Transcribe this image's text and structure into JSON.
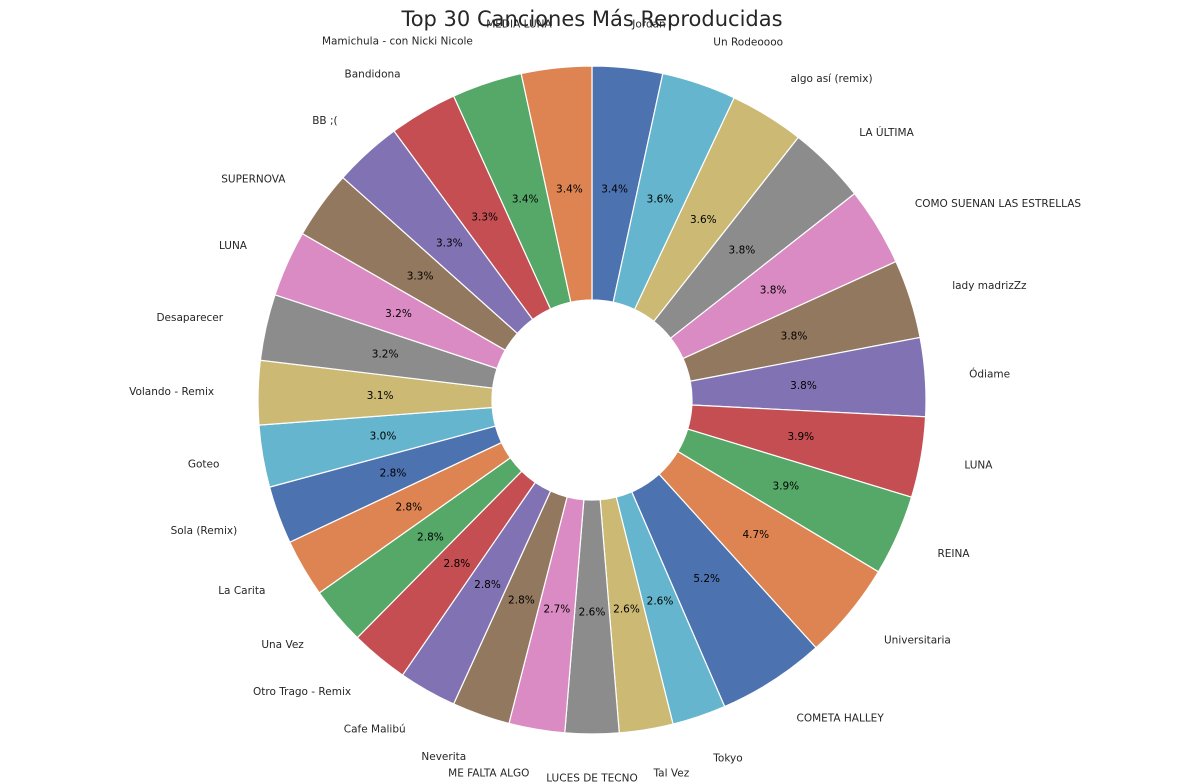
{
  "chart_data": {
    "type": "pie",
    "title": "Top 30 Canciones Más Reproducidas",
    "donut": true,
    "start_angle_deg": 90,
    "direction": "clockwise",
    "slices": [
      {
        "label": "Jordan I",
        "percent": 3.4
      },
      {
        "label": "Un Rodeoooo",
        "percent": 3.6
      },
      {
        "label": "algo así (remix)",
        "percent": 3.6
      },
      {
        "label": "LA ÚLTIMA",
        "percent": 3.8
      },
      {
        "label": "COMO SUENAN LAS ESTRELLAS",
        "percent": 3.8
      },
      {
        "label": "lady madrizZz",
        "percent": 3.8
      },
      {
        "label": "Ódiame",
        "percent": 3.8
      },
      {
        "label": "LUNA",
        "percent": 3.9
      },
      {
        "label": "REINA",
        "percent": 3.9
      },
      {
        "label": "Universitaria",
        "percent": 4.7
      },
      {
        "label": "COMETA HALLEY",
        "percent": 5.2
      },
      {
        "label": "Tokyo",
        "percent": 2.6
      },
      {
        "label": "Tal Vez",
        "percent": 2.6
      },
      {
        "label": "LUCES DE TECNO",
        "percent": 2.6
      },
      {
        "label": "ME FALTA ALGO",
        "percent": 2.7
      },
      {
        "label": "Neverita",
        "percent": 2.8
      },
      {
        "label": "Cafe Malibú",
        "percent": 2.8
      },
      {
        "label": "Otro Trago - Remix",
        "percent": 2.8
      },
      {
        "label": "Una Vez",
        "percent": 2.8
      },
      {
        "label": "La Carita",
        "percent": 2.8
      },
      {
        "label": "Sola (Remix)",
        "percent": 2.8
      },
      {
        "label": "Goteo",
        "percent": 3.0
      },
      {
        "label": "Volando - Remix",
        "percent": 3.1
      },
      {
        "label": "Desaparecer",
        "percent": 3.2
      },
      {
        "label": "LUNA",
        "percent": 3.2
      },
      {
        "label": "SUPERNOVA",
        "percent": 3.3
      },
      {
        "label": "BB ;(",
        "percent": 3.3
      },
      {
        "label": "Bandidona",
        "percent": 3.3
      },
      {
        "label": "Mamichula - con Nicki Nicole",
        "percent": 3.4
      },
      {
        "label": "MEDIA LUNA",
        "percent": 3.4
      }
    ],
    "palette": [
      "#4c72b0",
      "#64b5cd",
      "#ccb974",
      "#8c8c8c",
      "#da8bc3",
      "#937860",
      "#8172b3",
      "#c44e52",
      "#55a868",
      "#dd8452"
    ]
  }
}
